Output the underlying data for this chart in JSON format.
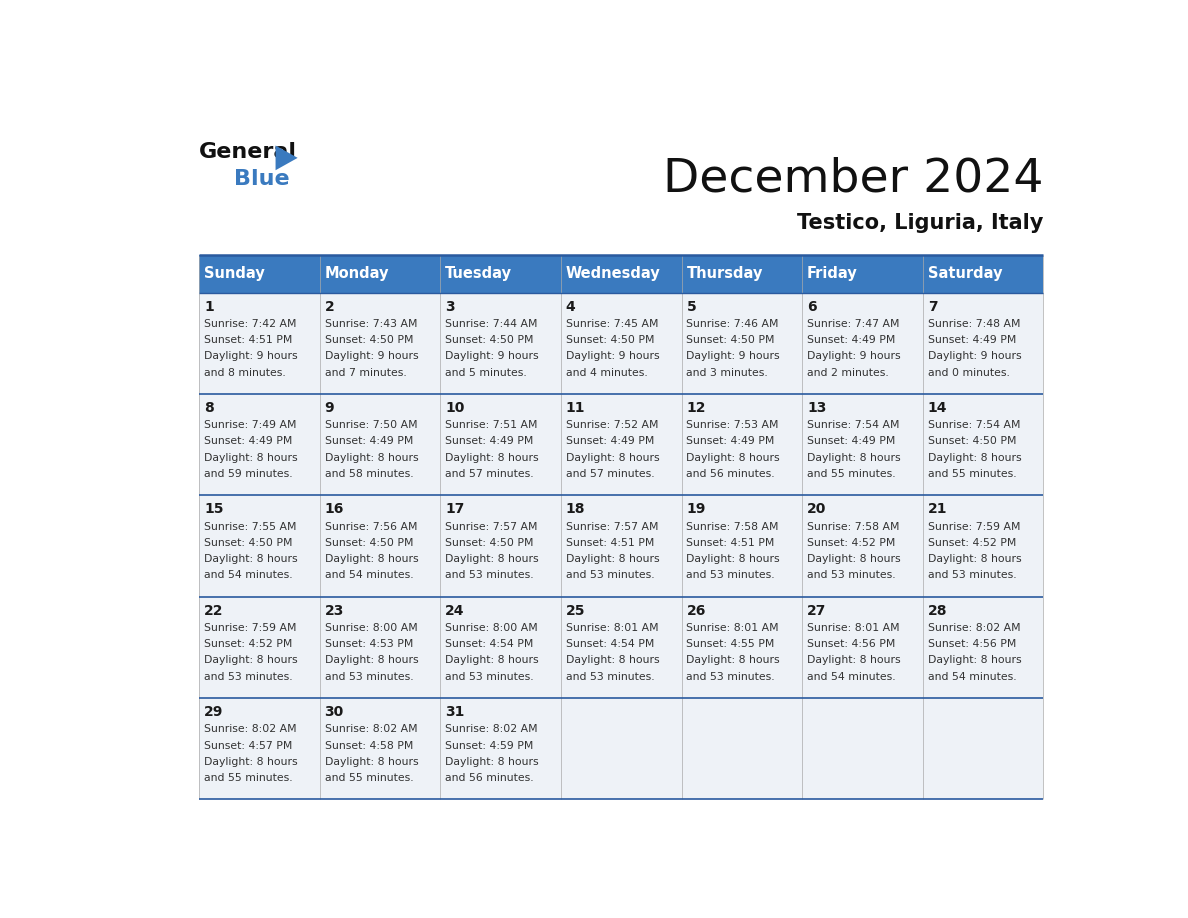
{
  "title": "December 2024",
  "subtitle": "Testico, Liguria, Italy",
  "header_color": "#3a7abf",
  "header_text_color": "#ffffff",
  "cell_bg_color": "#eef2f7",
  "border_color": "#2a5a9f",
  "days_of_week": [
    "Sunday",
    "Monday",
    "Tuesday",
    "Wednesday",
    "Thursday",
    "Friday",
    "Saturday"
  ],
  "calendar_data": [
    [
      {
        "day": 1,
        "sunrise": "7:42 AM",
        "sunset": "4:51 PM",
        "daylight": "9 hours and 8 minutes"
      },
      {
        "day": 2,
        "sunrise": "7:43 AM",
        "sunset": "4:50 PM",
        "daylight": "9 hours and 7 minutes"
      },
      {
        "day": 3,
        "sunrise": "7:44 AM",
        "sunset": "4:50 PM",
        "daylight": "9 hours and 5 minutes"
      },
      {
        "day": 4,
        "sunrise": "7:45 AM",
        "sunset": "4:50 PM",
        "daylight": "9 hours and 4 minutes"
      },
      {
        "day": 5,
        "sunrise": "7:46 AM",
        "sunset": "4:50 PM",
        "daylight": "9 hours and 3 minutes"
      },
      {
        "day": 6,
        "sunrise": "7:47 AM",
        "sunset": "4:49 PM",
        "daylight": "9 hours and 2 minutes"
      },
      {
        "day": 7,
        "sunrise": "7:48 AM",
        "sunset": "4:49 PM",
        "daylight": "9 hours and 0 minutes"
      }
    ],
    [
      {
        "day": 8,
        "sunrise": "7:49 AM",
        "sunset": "4:49 PM",
        "daylight": "8 hours and 59 minutes"
      },
      {
        "day": 9,
        "sunrise": "7:50 AM",
        "sunset": "4:49 PM",
        "daylight": "8 hours and 58 minutes"
      },
      {
        "day": 10,
        "sunrise": "7:51 AM",
        "sunset": "4:49 PM",
        "daylight": "8 hours and 57 minutes"
      },
      {
        "day": 11,
        "sunrise": "7:52 AM",
        "sunset": "4:49 PM",
        "daylight": "8 hours and 57 minutes"
      },
      {
        "day": 12,
        "sunrise": "7:53 AM",
        "sunset": "4:49 PM",
        "daylight": "8 hours and 56 minutes"
      },
      {
        "day": 13,
        "sunrise": "7:54 AM",
        "sunset": "4:49 PM",
        "daylight": "8 hours and 55 minutes"
      },
      {
        "day": 14,
        "sunrise": "7:54 AM",
        "sunset": "4:50 PM",
        "daylight": "8 hours and 55 minutes"
      }
    ],
    [
      {
        "day": 15,
        "sunrise": "7:55 AM",
        "sunset": "4:50 PM",
        "daylight": "8 hours and 54 minutes"
      },
      {
        "day": 16,
        "sunrise": "7:56 AM",
        "sunset": "4:50 PM",
        "daylight": "8 hours and 54 minutes"
      },
      {
        "day": 17,
        "sunrise": "7:57 AM",
        "sunset": "4:50 PM",
        "daylight": "8 hours and 53 minutes"
      },
      {
        "day": 18,
        "sunrise": "7:57 AM",
        "sunset": "4:51 PM",
        "daylight": "8 hours and 53 minutes"
      },
      {
        "day": 19,
        "sunrise": "7:58 AM",
        "sunset": "4:51 PM",
        "daylight": "8 hours and 53 minutes"
      },
      {
        "day": 20,
        "sunrise": "7:58 AM",
        "sunset": "4:52 PM",
        "daylight": "8 hours and 53 minutes"
      },
      {
        "day": 21,
        "sunrise": "7:59 AM",
        "sunset": "4:52 PM",
        "daylight": "8 hours and 53 minutes"
      }
    ],
    [
      {
        "day": 22,
        "sunrise": "7:59 AM",
        "sunset": "4:52 PM",
        "daylight": "8 hours and 53 minutes"
      },
      {
        "day": 23,
        "sunrise": "8:00 AM",
        "sunset": "4:53 PM",
        "daylight": "8 hours and 53 minutes"
      },
      {
        "day": 24,
        "sunrise": "8:00 AM",
        "sunset": "4:54 PM",
        "daylight": "8 hours and 53 minutes"
      },
      {
        "day": 25,
        "sunrise": "8:01 AM",
        "sunset": "4:54 PM",
        "daylight": "8 hours and 53 minutes"
      },
      {
        "day": 26,
        "sunrise": "8:01 AM",
        "sunset": "4:55 PM",
        "daylight": "8 hours and 53 minutes"
      },
      {
        "day": 27,
        "sunrise": "8:01 AM",
        "sunset": "4:56 PM",
        "daylight": "8 hours and 54 minutes"
      },
      {
        "day": 28,
        "sunrise": "8:02 AM",
        "sunset": "4:56 PM",
        "daylight": "8 hours and 54 minutes"
      }
    ],
    [
      {
        "day": 29,
        "sunrise": "8:02 AM",
        "sunset": "4:57 PM",
        "daylight": "8 hours and 55 minutes"
      },
      {
        "day": 30,
        "sunrise": "8:02 AM",
        "sunset": "4:58 PM",
        "daylight": "8 hours and 55 minutes"
      },
      {
        "day": 31,
        "sunrise": "8:02 AM",
        "sunset": "4:59 PM",
        "daylight": "8 hours and 56 minutes"
      },
      null,
      null,
      null,
      null
    ]
  ]
}
